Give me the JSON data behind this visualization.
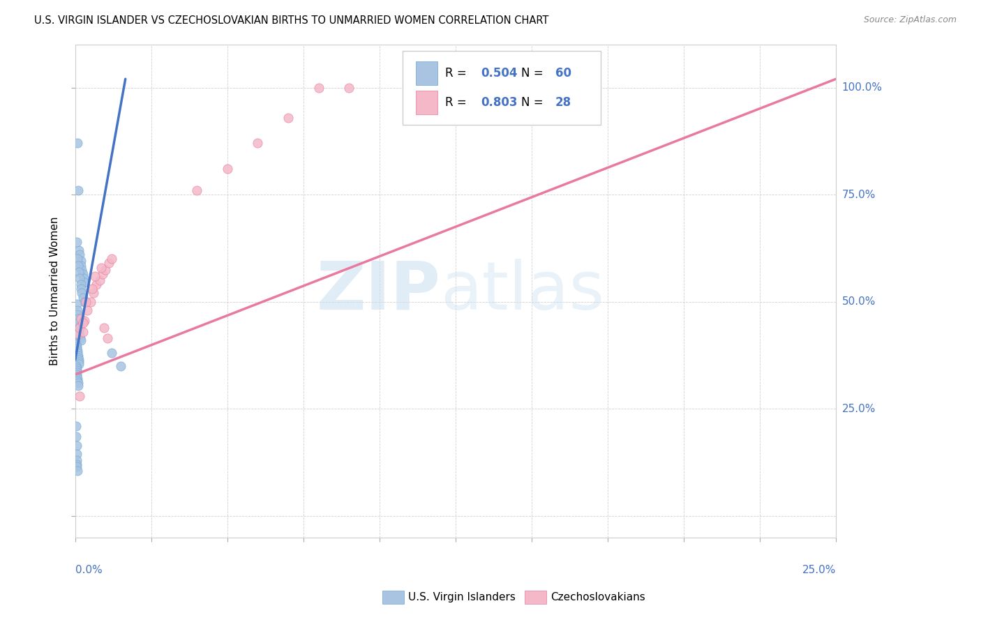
{
  "title": "U.S. VIRGIN ISLANDER VS CZECHOSLOVAKIAN BIRTHS TO UNMARRIED WOMEN CORRELATION CHART",
  "source": "Source: ZipAtlas.com",
  "ylabel": "Births to Unmarried Women",
  "blue_color": "#a8c4e0",
  "blue_edge_color": "#6fa8dc",
  "blue_line_color": "#4472c4",
  "pink_color": "#f4b8c8",
  "pink_edge_color": "#e87a9f",
  "pink_line_color": "#e87a9f",
  "watermark_zip_color": "#c8dff0",
  "watermark_atlas_color": "#c8dff0",
  "right_label_color": "#4472c4",
  "xmin": 0.0,
  "xmax": 0.25,
  "ymin": -0.05,
  "ymax": 1.1,
  "blue_x": [
    0.0008,
    0.001,
    0.0012,
    0.0015,
    0.0018,
    0.002,
    0.0022,
    0.0025,
    0.0028,
    0.003,
    0.0005,
    0.0008,
    0.001,
    0.0012,
    0.0015,
    0.0018,
    0.002,
    0.0022,
    0.0025,
    0.003,
    0.0005,
    0.0007,
    0.0008,
    0.0009,
    0.001,
    0.0012,
    0.0013,
    0.0015,
    0.0017,
    0.0018,
    0.0003,
    0.0005,
    0.0006,
    0.0007,
    0.0008,
    0.0009,
    0.001,
    0.0011,
    0.0012,
    0.0013,
    0.0003,
    0.0004,
    0.0005,
    0.0006,
    0.0004,
    0.0006,
    0.0007,
    0.0008,
    0.0009,
    0.001,
    0.012,
    0.015,
    0.0003,
    0.0003,
    0.0004,
    0.0004,
    0.0005,
    0.0006,
    0.0006,
    0.0007
  ],
  "blue_y": [
    0.87,
    0.76,
    0.62,
    0.61,
    0.595,
    0.585,
    0.575,
    0.565,
    0.555,
    0.545,
    0.64,
    0.6,
    0.585,
    0.57,
    0.555,
    0.54,
    0.53,
    0.52,
    0.51,
    0.5,
    0.495,
    0.48,
    0.47,
    0.46,
    0.45,
    0.44,
    0.43,
    0.42,
    0.415,
    0.41,
    0.4,
    0.395,
    0.39,
    0.385,
    0.38,
    0.375,
    0.37,
    0.365,
    0.36,
    0.355,
    0.35,
    0.345,
    0.34,
    0.335,
    0.33,
    0.325,
    0.32,
    0.315,
    0.31,
    0.305,
    0.38,
    0.35,
    0.21,
    0.185,
    0.165,
    0.145,
    0.13,
    0.12,
    0.115,
    0.105
  ],
  "pink_x": [
    0.001,
    0.0015,
    0.002,
    0.0025,
    0.003,
    0.004,
    0.005,
    0.006,
    0.007,
    0.008,
    0.009,
    0.01,
    0.011,
    0.012,
    0.04,
    0.05,
    0.06,
    0.07,
    0.08,
    0.09,
    0.0015,
    0.0025,
    0.0035,
    0.0055,
    0.0065,
    0.0085,
    0.0095,
    0.0105
  ],
  "pink_y": [
    0.425,
    0.44,
    0.46,
    0.43,
    0.455,
    0.48,
    0.5,
    0.52,
    0.54,
    0.55,
    0.565,
    0.575,
    0.59,
    0.6,
    0.76,
    0.81,
    0.87,
    0.93,
    1.0,
    1.0,
    0.28,
    0.45,
    0.5,
    0.53,
    0.56,
    0.58,
    0.44,
    0.415
  ],
  "blue_trend_x0": 0.0,
  "blue_trend_y0": 0.365,
  "blue_trend_x1": 0.0165,
  "blue_trend_y1": 1.02,
  "pink_trend_x0": 0.0,
  "pink_trend_y0": 0.33,
  "pink_trend_x1": 0.25,
  "pink_trend_y1": 1.02
}
